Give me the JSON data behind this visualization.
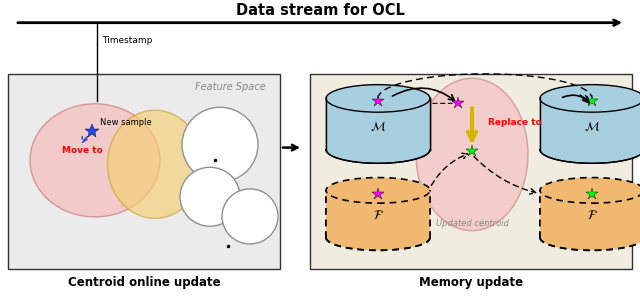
{
  "bg_color": "#ffffff",
  "left_panel_bg": "#ebebeb",
  "right_panel_bg": "#f0ede0",
  "title": "Data stream for OCL",
  "caption": "Centroid online update",
  "caption2": "Memory update",
  "timestamp_label": "Timestamp",
  "feature_space_label": "Feature Space",
  "move_to_label": "Move to",
  "replace_to_label": "Replace to",
  "updated_centroid_label": "Updated centroid",
  "new_sample_label": "New sample",
  "cylinder_M_color": "#a8cfe0",
  "cylinder_F_color": "#f0b870",
  "panel_border": "#333333"
}
